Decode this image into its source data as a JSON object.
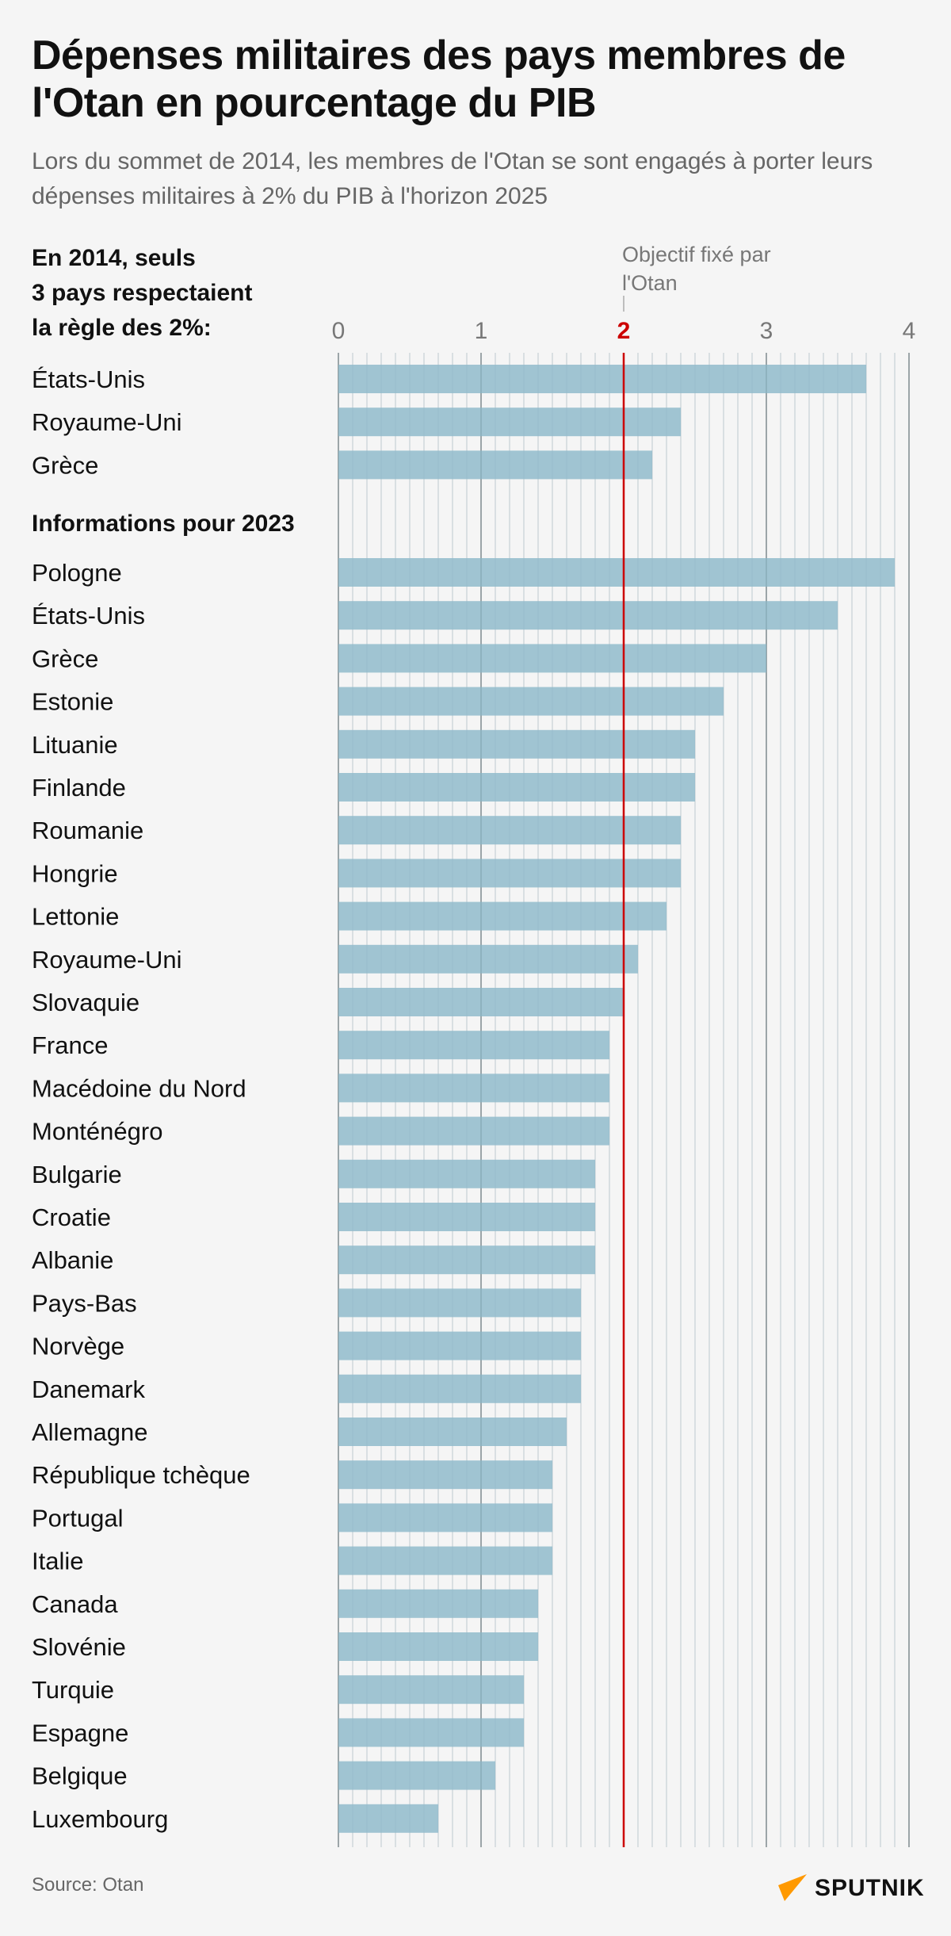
{
  "title": "Dépenses militaires des pays membres de l'Otan en pourcentage du PIB",
  "subtitle": "Lors du sommet de 2014, les membres de l'Otan se sont engagés à porter leurs dépenses militaires à 2% du PIB à l'horizon 2025",
  "source": "Source: Otan",
  "logo_text": "SPUTNIK",
  "colors": {
    "bar": "#9bc1d0",
    "target_line": "#cc0000",
    "logo_accent": "#ff9900"
  },
  "chart_data": {
    "type": "bar",
    "orientation": "horizontal",
    "xlim": [
      0,
      4
    ],
    "x_ticks": [
      "0",
      "1",
      "2",
      "3",
      "4"
    ],
    "grid": true,
    "target": {
      "value": 2,
      "label": "Objectif fixé par l'Otan"
    },
    "groups": [
      {
        "heading": "En 2014, seuls 3 pays respectaient la règle des 2%:",
        "categories": [
          "États-Unis",
          "Royaume-Uni",
          "Grèce"
        ],
        "values": [
          3.7,
          2.4,
          2.2
        ]
      },
      {
        "heading": "Informations pour 2023",
        "categories": [
          "Pologne",
          "États-Unis",
          "Grèce",
          "Estonie",
          "Lituanie",
          "Finlande",
          "Roumanie",
          "Hongrie",
          "Lettonie",
          "Royaume-Uni",
          "Slovaquie",
          "France",
          "Macédoine du Nord",
          "Monténégro",
          "Bulgarie",
          "Croatie",
          "Albanie",
          "Pays-Bas",
          "Norvège",
          "Danemark",
          "Allemagne",
          "République tchèque",
          "Portugal",
          "Italie",
          "Canada",
          "Slovénie",
          "Turquie",
          "Espagne",
          "Belgique",
          "Luxembourg"
        ],
        "values": [
          3.9,
          3.5,
          3.0,
          2.7,
          2.5,
          2.5,
          2.4,
          2.4,
          2.3,
          2.1,
          2.0,
          1.9,
          1.9,
          1.9,
          1.8,
          1.8,
          1.8,
          1.7,
          1.7,
          1.7,
          1.6,
          1.5,
          1.5,
          1.5,
          1.4,
          1.4,
          1.3,
          1.3,
          1.1,
          0.7
        ]
      }
    ]
  }
}
